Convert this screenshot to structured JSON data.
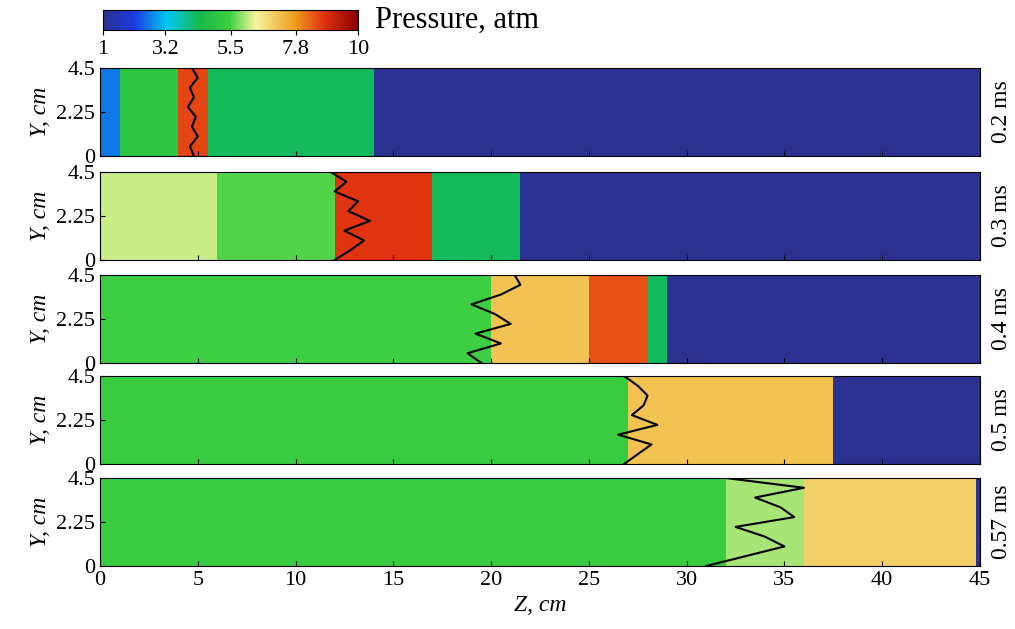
{
  "colorbar": {
    "title": "Pressure, atm",
    "range": [
      1,
      10
    ],
    "ticks": [
      1,
      3.2,
      5.5,
      7.8,
      10
    ]
  },
  "chart_data": [
    {
      "type": "heatmap",
      "label": "0.2 ms",
      "y_label": "Y, cm",
      "tick_labels": "y",
      "z_edges": [
        0,
        1,
        4,
        5.5,
        14,
        45
      ],
      "y_edges": [
        0,
        4.5
      ],
      "cells": [
        [
          2.6,
          5.0,
          8.6,
          4.3,
          1
        ]
      ],
      "front_z": [
        4.8,
        4.6,
        5.0,
        4.7,
        4.9,
        4.5,
        4.8,
        4.6,
        5.0,
        4.7
      ],
      "front_y": [
        0,
        0.5,
        1,
        1.5,
        2,
        2.5,
        3,
        3.5,
        4,
        4.5
      ],
      "xlim": [
        0,
        45
      ],
      "ylim": [
        0,
        4.5
      ],
      "xticks": [
        0,
        5,
        10,
        15,
        20,
        25,
        30,
        35,
        40,
        45
      ],
      "yticks": [
        0,
        2.25,
        4.5
      ]
    },
    {
      "type": "heatmap",
      "label": "0.3 ms",
      "y_label": "Y, cm",
      "tick_labels": "y",
      "z_edges": [
        0,
        6,
        12,
        17,
        21.5,
        45
      ],
      "y_edges": [
        0,
        4.5
      ],
      "cells": [
        [
          6.2,
          5.6,
          8.8,
          4.3,
          1
        ]
      ],
      "front_z": [
        12.0,
        12.8,
        13.5,
        12.5,
        13.8,
        12.7,
        13.2,
        12.0,
        12.6,
        11.8
      ],
      "front_y": [
        0,
        0.5,
        1,
        1.5,
        2,
        2.5,
        3,
        3.5,
        4,
        4.5
      ],
      "xlim": [
        0,
        45
      ],
      "ylim": [
        0,
        4.5
      ],
      "xticks": [
        0,
        5,
        10,
        15,
        20,
        25,
        30,
        35,
        40,
        45
      ],
      "yticks": [
        0,
        2.25,
        4.5
      ]
    },
    {
      "type": "heatmap",
      "label": "0.4 ms",
      "y_label": "Y, cm",
      "tick_labels": "y",
      "z_edges": [
        0,
        20,
        25,
        28,
        29,
        45
      ],
      "y_edges": [
        0,
        4.5
      ],
      "cells": [
        [
          5.4,
          7.2,
          8.5,
          4.3,
          1
        ]
      ],
      "front_z": [
        19.5,
        18.8,
        20.5,
        19.2,
        21.0,
        20.2,
        19.0,
        20.5,
        21.5,
        21.2
      ],
      "front_y": [
        0,
        0.5,
        1,
        1.5,
        2,
        2.5,
        3,
        3.5,
        4,
        4.5
      ],
      "xlim": [
        0,
        45
      ],
      "ylim": [
        0,
        4.5
      ],
      "xticks": [
        0,
        5,
        10,
        15,
        20,
        25,
        30,
        35,
        40,
        45
      ],
      "yticks": [
        0,
        2.25,
        4.5
      ]
    },
    {
      "type": "heatmap",
      "label": "0.5 ms",
      "y_label": "Y, cm",
      "tick_labels": "y",
      "z_edges": [
        0,
        27,
        37.5,
        45
      ],
      "y_edges": [
        0,
        4.5
      ],
      "cells": [
        [
          5.3,
          7.2,
          1
        ]
      ],
      "front_z": [
        26.8,
        27.5,
        28.2,
        26.5,
        28.5,
        27.2,
        27.8,
        28.0,
        27.5,
        26.8
      ],
      "front_y": [
        0,
        0.5,
        1,
        1.5,
        2,
        2.5,
        3,
        3.5,
        4,
        4.5
      ],
      "xlim": [
        0,
        45
      ],
      "ylim": [
        0,
        4.5
      ],
      "xticks": [
        0,
        5,
        10,
        15,
        20,
        25,
        30,
        35,
        40,
        45
      ],
      "yticks": [
        0,
        2.25,
        4.5
      ]
    },
    {
      "type": "heatmap",
      "label": "0.57 ms",
      "y_label": "Y, cm",
      "x_label": "Z, cm",
      "z_edges": [
        0,
        32,
        36,
        44.8,
        45
      ],
      "y_edges": [
        0,
        4.5
      ],
      "cells": [
        [
          5.3,
          6.0,
          7.0,
          1
        ]
      ],
      "front_z": [
        31.0,
        33.0,
        35.0,
        34.0,
        32.5,
        35.5,
        34.8,
        33.5,
        36.0,
        32.0
      ],
      "front_y": [
        0,
        0.5,
        1,
        1.5,
        2,
        2.5,
        3,
        3.5,
        4,
        4.5
      ],
      "xlim": [
        0,
        45
      ],
      "ylim": [
        0,
        4.5
      ],
      "xticks": [
        0,
        5,
        10,
        15,
        20,
        25,
        30,
        35,
        40,
        45
      ],
      "yticks": [
        0,
        2.25,
        4.5
      ]
    }
  ]
}
